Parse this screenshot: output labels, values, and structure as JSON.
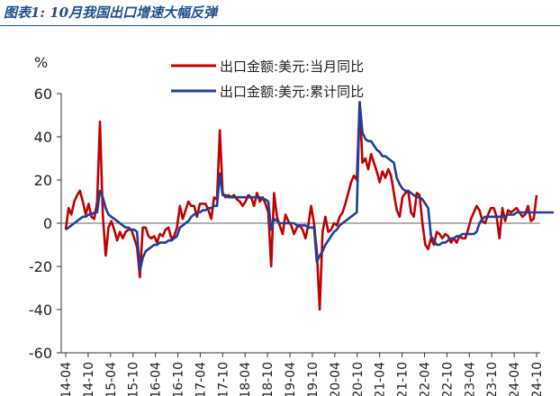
{
  "caption": "图表1:  10月我国出口增速大幅反弹",
  "chart_data": {
    "type": "line",
    "unit": "%",
    "ylim": [
      -60,
      60
    ],
    "yticks": [
      60,
      40,
      20,
      0,
      -20,
      -40,
      -60
    ],
    "grid": false,
    "legend_position": "top-center",
    "x_tick_labels": [
      "2014-04",
      "2014-10",
      "2015-04",
      "2015-10",
      "2016-04",
      "2016-10",
      "2017-04",
      "2017-10",
      "2018-04",
      "2018-10",
      "2019-04",
      "2019-10",
      "2020-04",
      "2020-10",
      "2021-04",
      "2021-10",
      "2022-04",
      "2022-10",
      "2023-04",
      "2023-10",
      "2024-04",
      "2024-10"
    ],
    "series": [
      {
        "name": "出口金额:美元:当月同比",
        "color": "#c00000",
        "values": [
          -3,
          7,
          4,
          10,
          13,
          15,
          10,
          4,
          9,
          3,
          2,
          10,
          47,
          4,
          -15,
          -2,
          1,
          -3,
          -8,
          -4,
          -7,
          -4,
          -3,
          -3,
          -7,
          -11,
          -25,
          -2,
          -2,
          -6,
          -7,
          -6,
          -9,
          -5,
          -6,
          -3,
          -2,
          -7,
          -6,
          -2,
          8,
          2,
          6,
          10,
          8,
          8,
          3,
          9,
          9,
          9,
          6,
          2,
          12,
          11,
          43,
          14,
          12,
          13,
          12,
          13,
          11,
          10,
          8,
          10,
          13,
          12,
          8,
          14,
          10,
          12,
          9,
          5,
          -20,
          14,
          3,
          -1,
          -5,
          4,
          1,
          -1,
          -5,
          -2,
          -1,
          -3,
          -7,
          -1,
          8,
          0,
          -13,
          -40,
          -4,
          3,
          -4,
          -3,
          0,
          -1,
          3,
          5,
          9,
          14,
          19,
          22,
          20,
          56,
          28,
          30,
          25,
          32,
          28,
          24,
          19,
          24,
          21,
          25,
          22,
          14,
          6,
          3,
          12,
          14,
          15,
          5,
          3,
          14,
          13,
          0,
          -10,
          -12,
          -7,
          -10,
          -4,
          -5,
          -7,
          -5,
          -6,
          -9,
          -7,
          -9,
          -6,
          -7,
          -7,
          -3,
          2,
          5,
          8,
          6,
          1,
          0,
          4,
          7,
          7,
          3,
          -7,
          7,
          1,
          6,
          5,
          6,
          7,
          5,
          3,
          4,
          8,
          1,
          2,
          13
        ]
      },
      {
        "name": "出口金额:美元:累计同比",
        "color": "#1f3f99",
        "values": [
          -3,
          -2,
          -1,
          0,
          1,
          2,
          3,
          3,
          4,
          4,
          5,
          5,
          15,
          12,
          7,
          4,
          3,
          2,
          1,
          0,
          -1,
          -2,
          -2,
          -3,
          -3,
          -4,
          -22,
          -16,
          -13,
          -12,
          -11,
          -10,
          -10,
          -9,
          -9,
          -9,
          -8,
          -8,
          -7,
          -6,
          -2,
          -1,
          0,
          1,
          3,
          4,
          5,
          5,
          6,
          6,
          7,
          7,
          8,
          8,
          23,
          13,
          13,
          12,
          12,
          12,
          12,
          12,
          12,
          12,
          12,
          12,
          12,
          12,
          12,
          11,
          11,
          10,
          -3,
          2,
          1,
          0,
          0,
          0,
          0,
          0,
          0,
          -1,
          -1,
          -1,
          -1,
          -2,
          -2,
          -2,
          -18,
          -15,
          -13,
          -10,
          -8,
          -6,
          -4,
          -3,
          -1,
          0,
          1,
          2,
          3,
          4,
          5,
          56,
          42,
          39,
          38,
          38,
          36,
          34,
          33,
          31,
          31,
          30,
          29,
          28,
          21,
          18,
          16,
          15,
          15,
          14,
          13,
          12,
          12,
          11,
          9,
          7,
          -6,
          -8,
          -10,
          -10,
          -9,
          -9,
          -8,
          -7,
          -7,
          -6,
          -6,
          -5,
          -5,
          -5,
          -5,
          -5,
          -4,
          0,
          2,
          3,
          3,
          3,
          3,
          3,
          3,
          3,
          3,
          4,
          4,
          4,
          5,
          5,
          5,
          5,
          5,
          5,
          5,
          5,
          5,
          5,
          5,
          5,
          5,
          5
        ]
      }
    ]
  }
}
